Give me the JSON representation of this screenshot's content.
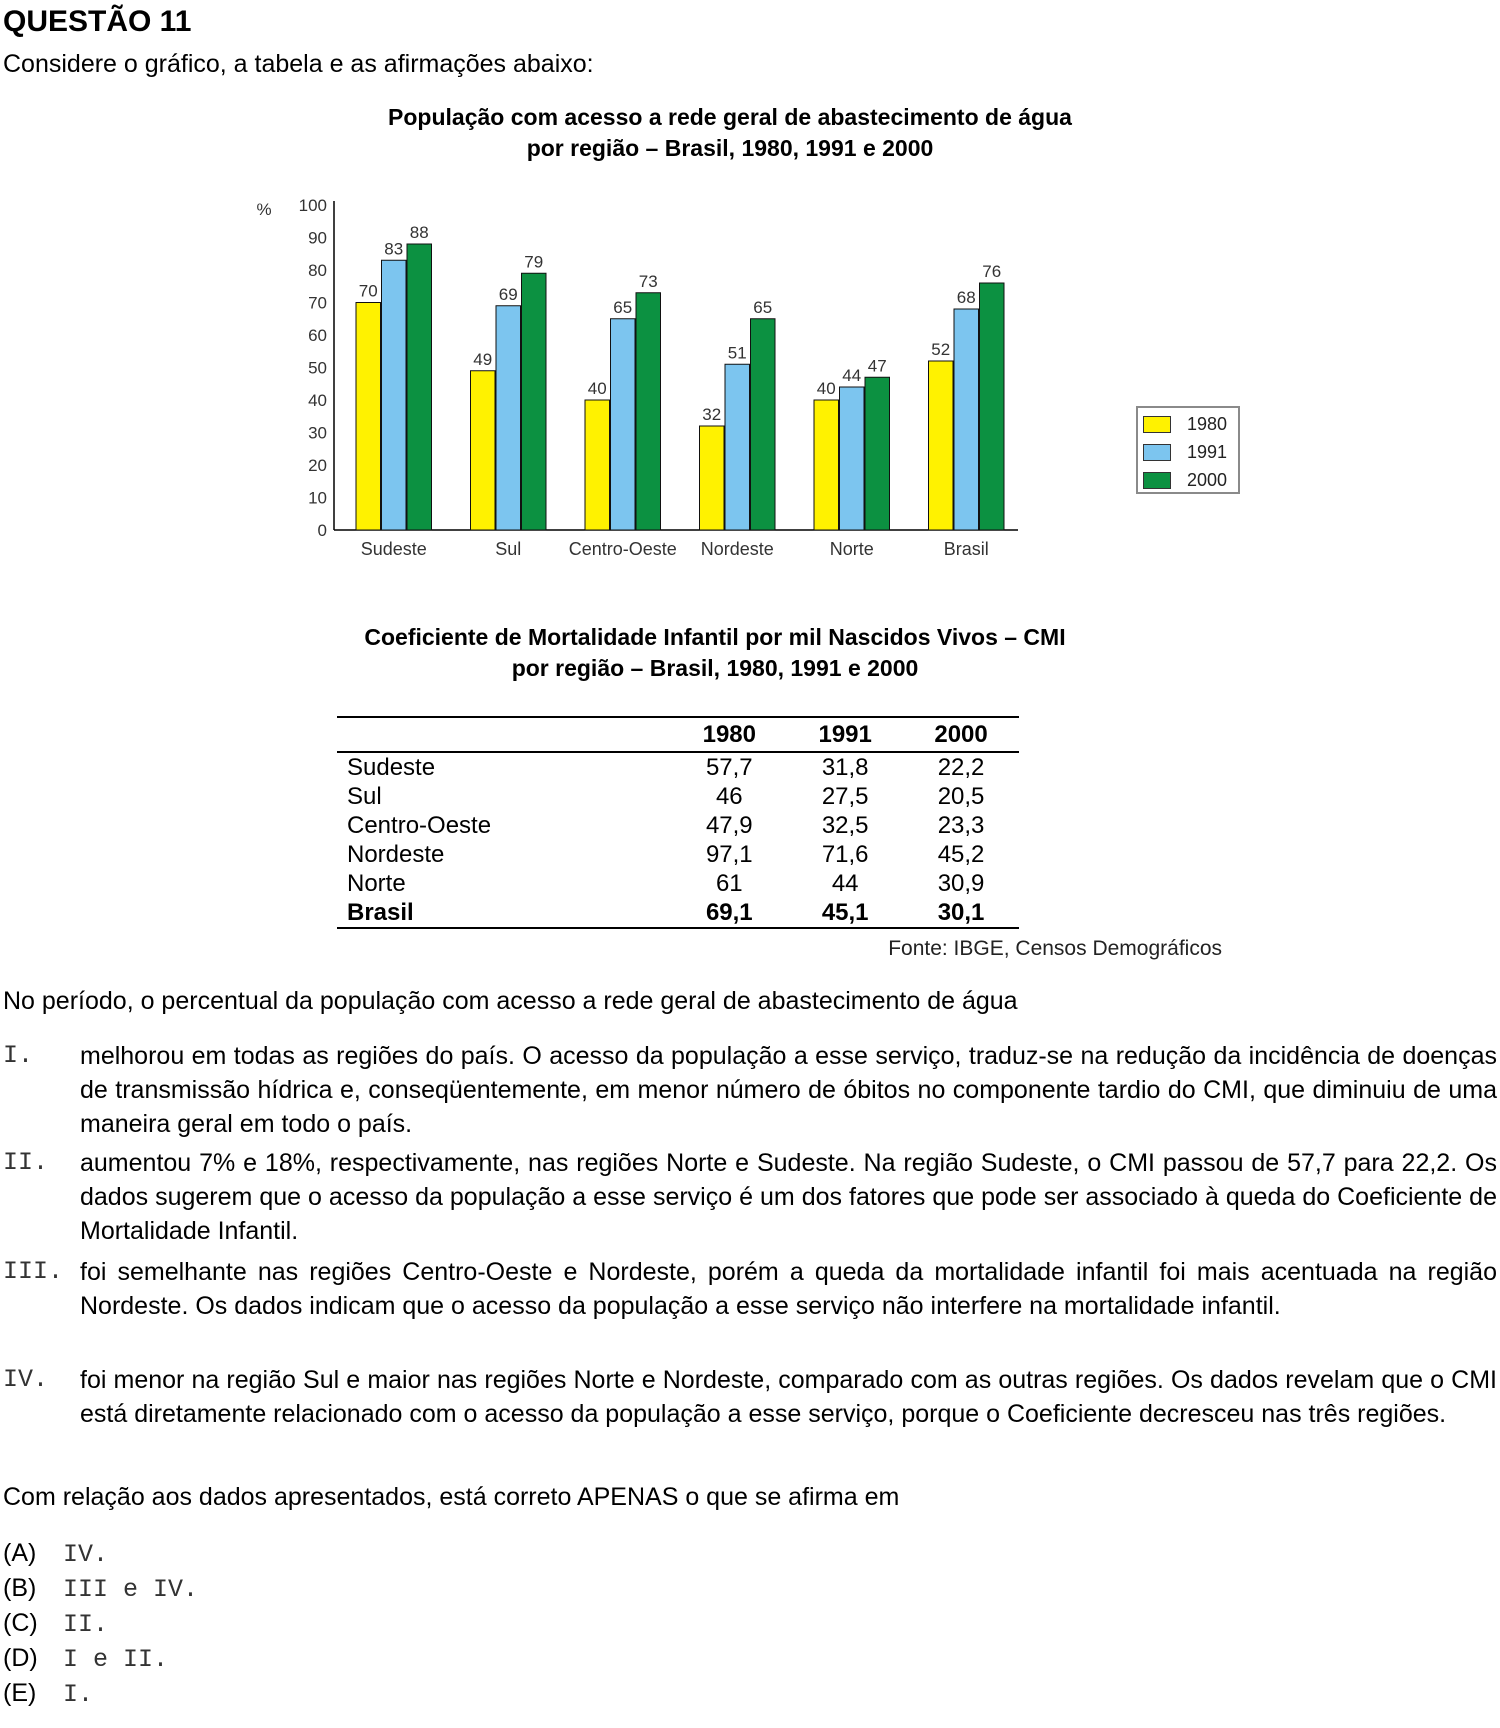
{
  "question_title": "QUESTÃO 11",
  "intro": "Considere o gráfico, a tabela e as afirmações abaixo:",
  "chart_data": {
    "type": "bar",
    "title_line1": "População com acesso a rede geral de abastecimento de água",
    "title_line2": "por região – Brasil, 1980, 1991 e 2000",
    "ylabel": "%",
    "ylim": [
      0,
      100
    ],
    "yticks": [
      "0",
      "10",
      "20",
      "30",
      "40",
      "50",
      "60",
      "70",
      "80",
      "90",
      "100"
    ],
    "categories": [
      "Sudeste",
      "Sul",
      "Centro-Oeste",
      "Nordeste",
      "Norte",
      "Brasil"
    ],
    "series": [
      {
        "name": "1980",
        "color": "#fff200",
        "values": [
          70,
          49,
          40,
          32,
          40,
          52
        ]
      },
      {
        "name": "1991",
        "color": "#7cc5ef",
        "values": [
          83,
          69,
          65,
          51,
          44,
          68
        ]
      },
      {
        "name": "2000",
        "color": "#0c9141",
        "values": [
          88,
          79,
          73,
          65,
          47,
          76
        ]
      }
    ],
    "legend_position": "right",
    "grid": false
  },
  "table": {
    "title_line1": "Coeficiente de Mortalidade Infantil por mil Nascidos Vivos – CMI",
    "title_line2": "por região – Brasil, 1980, 1991 e 2000",
    "headers": [
      "",
      "1980",
      "1991",
      "2000"
    ],
    "rows": [
      [
        "Sudeste",
        "57,7",
        "31,8",
        "22,2"
      ],
      [
        "Sul",
        "46",
        "27,5",
        "20,5"
      ],
      [
        "Centro-Oeste",
        "47,9",
        "32,5",
        "23,3"
      ],
      [
        "Nordeste",
        "97,1",
        "71,6",
        "45,2"
      ],
      [
        "Norte",
        "61",
        "44",
        "30,9"
      ],
      [
        "Brasil",
        "69,1",
        "45,1",
        "30,1"
      ]
    ]
  },
  "source": "Fonte: IBGE, Censos Demográficos",
  "lead": "No período, o percentual da população com acesso a rede geral de abastecimento de água",
  "statements": [
    {
      "label": "I.",
      "text": "melhorou em todas as regiões do país. O acesso da população a esse serviço, traduz-se na redução da incidência de doenças de transmissão hídrica e, conseqüentemente, em menor número de óbitos no componente tardio do CMI, que diminuiu de uma maneira geral em todo o país."
    },
    {
      "label": "II.",
      "text": "aumentou 7% e 18%,  respectivamente, nas regiões Norte e Sudeste. Na região Sudeste, o CMI passou de 57,7 para 22,2. Os dados sugerem que o acesso da população a esse serviço é um dos fatores que pode ser associado à queda do Coeficiente de Mortalidade Infantil."
    },
    {
      "label": "III.",
      "text": "foi semelhante nas regiões Centro-Oeste e Nordeste, porém a queda da mortalidade infantil foi mais acentuada na região Nordeste. Os dados indicam que o acesso da população a esse serviço não interfere na mortalidade infantil."
    },
    {
      "label": "IV.",
      "text": "foi menor na região Sul e maior nas regiões Norte e Nordeste, comparado com as outras regiões. Os dados revelam que o CMI está diretamente relacionado com o acesso da população a esse serviço, porque o Coeficiente decresceu nas três regiões."
    }
  ],
  "question": "Com relação aos dados apresentados, está correto APENAS o que se afirma em",
  "options": [
    {
      "key": "(A)",
      "value": "IV."
    },
    {
      "key": "(B)",
      "value": "III e IV."
    },
    {
      "key": "(C)",
      "value": "II."
    },
    {
      "key": "(D)",
      "value": "I e II."
    },
    {
      "key": "(E)",
      "value": "I."
    }
  ]
}
